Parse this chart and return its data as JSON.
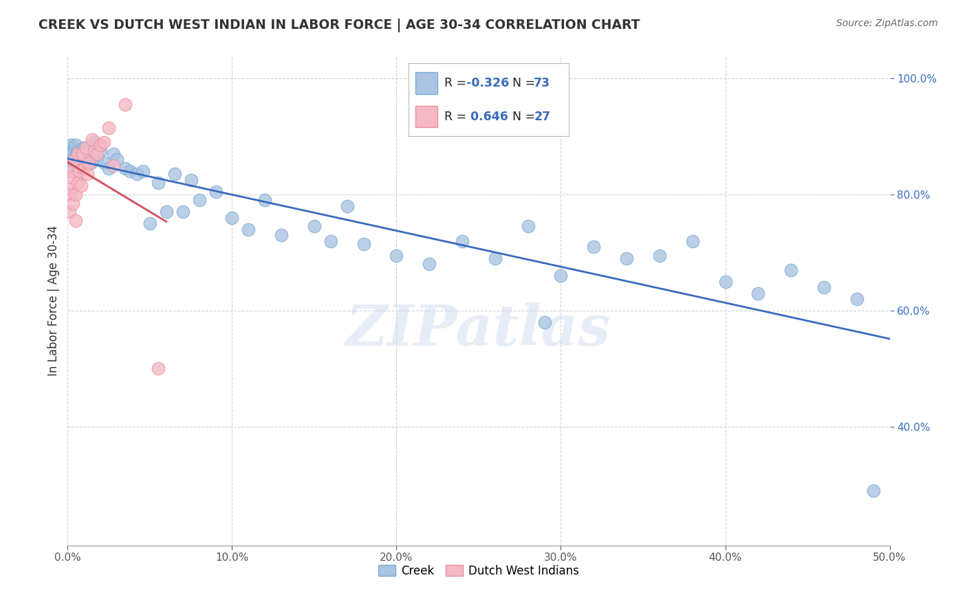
{
  "title": "CREEK VS DUTCH WEST INDIAN IN LABOR FORCE | AGE 30-34 CORRELATION CHART",
  "source": "Source: ZipAtlas.com",
  "ylabel": "In Labor Force | Age 30-34",
  "xlim": [
    0.0,
    0.5
  ],
  "ylim": [
    0.195,
    1.04
  ],
  "xticks": [
    0.0,
    0.1,
    0.2,
    0.3,
    0.4,
    0.5
  ],
  "yticks": [
    0.4,
    0.6,
    0.8,
    1.0
  ],
  "xtick_labels": [
    "0.0%",
    "10.0%",
    "20.0%",
    "30.0%",
    "40.0%",
    "50.0%"
  ],
  "ytick_labels": [
    "40.0%",
    "60.0%",
    "80.0%",
    "100.0%"
  ],
  "creek_color": "#aac4e2",
  "dutch_color": "#f5b8c4",
  "creek_edge": "#7aadd4",
  "dutch_edge": "#e8909f",
  "trend_creek_color": "#3a6bbf",
  "trend_dutch_color": "#d44b5a",
  "R_creek": -0.326,
  "N_creek": 73,
  "R_dutch": 0.646,
  "N_dutch": 27,
  "legend_labels": [
    "Creek",
    "Dutch West Indians"
  ],
  "creek_x": [
    0.001,
    0.001,
    0.001,
    0.001,
    0.001,
    0.002,
    0.002,
    0.002,
    0.003,
    0.003,
    0.003,
    0.004,
    0.004,
    0.005,
    0.005,
    0.006,
    0.006,
    0.007,
    0.007,
    0.008,
    0.008,
    0.009,
    0.01,
    0.01,
    0.011,
    0.012,
    0.013,
    0.014,
    0.015,
    0.016,
    0.018,
    0.02,
    0.022,
    0.025,
    0.028,
    0.03,
    0.035,
    0.038,
    0.042,
    0.046,
    0.05,
    0.055,
    0.06,
    0.065,
    0.07,
    0.075,
    0.08,
    0.09,
    0.1,
    0.11,
    0.12,
    0.13,
    0.15,
    0.16,
    0.17,
    0.18,
    0.2,
    0.22,
    0.24,
    0.26,
    0.28,
    0.3,
    0.32,
    0.36,
    0.38,
    0.4,
    0.42,
    0.44,
    0.46,
    0.48,
    0.29,
    0.34,
    0.49
  ],
  "creek_y": [
    0.87,
    0.855,
    0.84,
    0.88,
    0.86,
    0.87,
    0.885,
    0.85,
    0.875,
    0.855,
    0.84,
    0.88,
    0.86,
    0.885,
    0.865,
    0.855,
    0.875,
    0.85,
    0.87,
    0.865,
    0.875,
    0.845,
    0.88,
    0.86,
    0.855,
    0.87,
    0.875,
    0.855,
    0.87,
    0.89,
    0.86,
    0.875,
    0.855,
    0.845,
    0.87,
    0.86,
    0.845,
    0.84,
    0.835,
    0.84,
    0.75,
    0.82,
    0.77,
    0.835,
    0.77,
    0.825,
    0.79,
    0.805,
    0.76,
    0.74,
    0.79,
    0.73,
    0.745,
    0.72,
    0.78,
    0.715,
    0.695,
    0.68,
    0.72,
    0.69,
    0.745,
    0.66,
    0.71,
    0.695,
    0.72,
    0.65,
    0.63,
    0.67,
    0.64,
    0.62,
    0.58,
    0.69,
    0.29
  ],
  "dutch_x": [
    0.001,
    0.001,
    0.002,
    0.002,
    0.003,
    0.003,
    0.004,
    0.005,
    0.005,
    0.006,
    0.006,
    0.007,
    0.008,
    0.009,
    0.01,
    0.011,
    0.012,
    0.013,
    0.015,
    0.016,
    0.018,
    0.02,
    0.022,
    0.025,
    0.028,
    0.035,
    0.055
  ],
  "dutch_y": [
    0.81,
    0.77,
    0.8,
    0.84,
    0.83,
    0.785,
    0.86,
    0.8,
    0.755,
    0.82,
    0.87,
    0.84,
    0.815,
    0.87,
    0.845,
    0.88,
    0.835,
    0.855,
    0.895,
    0.875,
    0.87,
    0.885,
    0.89,
    0.915,
    0.85,
    0.955,
    0.5
  ],
  "watermark_text": "ZIPatlas",
  "background_color": "#ffffff",
  "grid_color": "#cccccc"
}
